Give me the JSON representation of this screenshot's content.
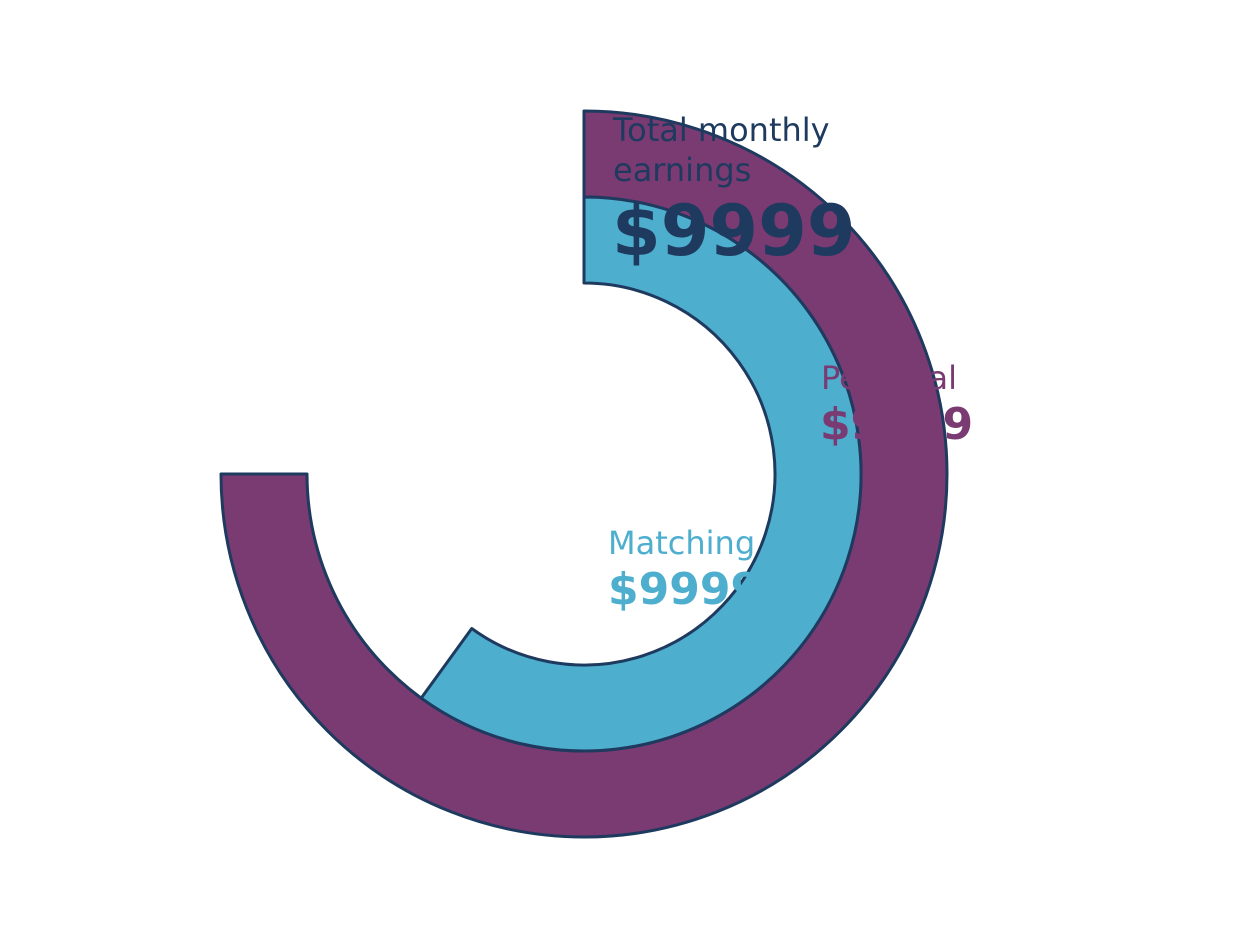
{
  "chart_data": {
    "type": "radial-bar",
    "title": "Total monthly earnings",
    "total_value": "$9999",
    "series": [
      {
        "name": "Personal",
        "value_label": "$9999",
        "fraction": 0.75,
        "color": "#7a3a72"
      },
      {
        "name": "Matching",
        "value_label": "$9999",
        "fraction": 0.6,
        "color": "#4eaece"
      }
    ],
    "colors": {
      "outline": "#1e3a5f",
      "title_text": "#1e3a5f"
    }
  }
}
